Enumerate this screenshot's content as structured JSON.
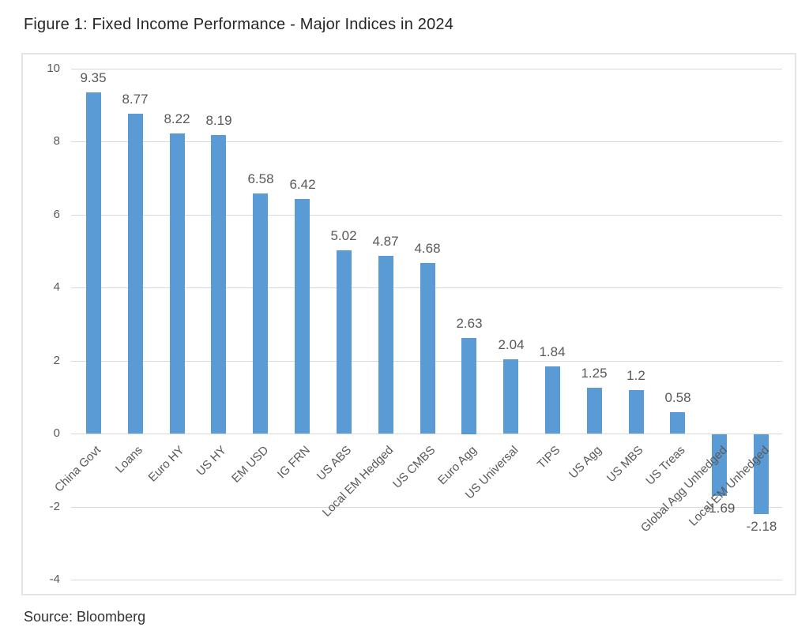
{
  "title": "Figure 1: Fixed Income Performance - Major Indices in 2024",
  "source": "Source: Bloomberg",
  "colors": {
    "bar": "#5B9BD5",
    "gridline": "#d9d9d9",
    "axis_text": "#595959",
    "title_text": "#262626"
  },
  "chart_data": {
    "type": "bar",
    "title": "Figure 1: Fixed Income Performance - Major Indices in 2024",
    "categories": [
      "China Govt",
      "Loans",
      "Euro HY",
      "US HY",
      "EM USD",
      "IG FRN",
      "US ABS",
      "Local EM Hedged",
      "US CMBS",
      "Euro Agg",
      "US Universal",
      "TIPS",
      "US Agg",
      "US MBS",
      "US Treas",
      "Global Agg Unhedged",
      "Local EM Unhedged"
    ],
    "values": [
      9.35,
      8.77,
      8.22,
      8.19,
      6.58,
      6.42,
      5.02,
      4.87,
      4.68,
      2.63,
      2.04,
      1.84,
      1.25,
      1.2,
      0.58,
      -1.69,
      -2.18
    ],
    "data_labels": [
      "9.35",
      "8.77",
      "8.22",
      "8.19",
      "6.58",
      "6.42",
      "5.02",
      "4.87",
      "4.68",
      "2.63",
      "2.04",
      "1.84",
      "1.25",
      "1.2",
      "0.58",
      "-1.69",
      "-2.18"
    ],
    "xlabel": "",
    "ylabel": "",
    "ylim": [
      -4,
      10
    ],
    "yticks": [
      10,
      8,
      6,
      4,
      2,
      0,
      -2,
      -4
    ],
    "grid": true,
    "legend": "none",
    "source": "Source: Bloomberg"
  }
}
